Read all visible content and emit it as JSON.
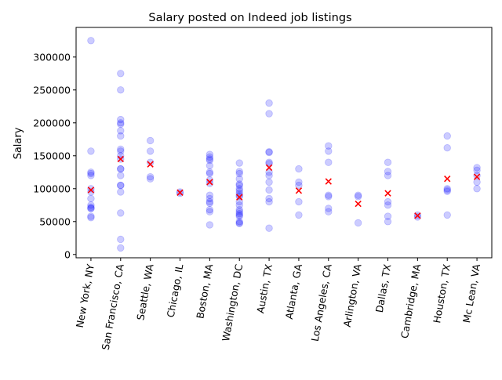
{
  "chart_data": {
    "type": "scatter",
    "title": "Salary posted on Indeed job listings",
    "xlabel": "",
    "ylabel": "Salary",
    "ylim": [
      -5000,
      345000
    ],
    "yticks": [
      0,
      50000,
      100000,
      150000,
      200000,
      250000,
      300000
    ],
    "ytick_labels": [
      "0",
      "50000",
      "100000",
      "150000",
      "200000",
      "250000",
      "300000"
    ],
    "grid": false,
    "categories": [
      "New York, NY",
      "San Francisco, CA",
      "Seattle, WA",
      "Chicago, IL",
      "Boston, MA",
      "Washington, DC",
      "Austin, TX",
      "Atlanta, GA",
      "Los Angeles, CA",
      "Arlington, VA",
      "Dallas, TX",
      "Cambridge, MA",
      "Houston, TX",
      "Mc Lean, VA"
    ],
    "series": [
      {
        "marker": "circle",
        "color": "#0000ff",
        "opacity": 0.2,
        "points": [
          [
            325000,
            157000,
            125000,
            123000,
            120000,
            100000,
            95000,
            85000,
            75000,
            72000,
            70000,
            70000,
            58000,
            56000
          ],
          [
            275000,
            250000,
            205000,
            200000,
            198000,
            188000,
            180000,
            160000,
            157000,
            150000,
            145000,
            130000,
            130000,
            120000,
            105000,
            105000,
            95000,
            63000,
            23000,
            10000
          ],
          [
            173000,
            157000,
            140000,
            118000,
            115000
          ],
          [
            95000,
            93000
          ],
          [
            152000,
            148000,
            145000,
            143000,
            135000,
            125000,
            123000,
            113000,
            108000,
            90000,
            85000,
            80000,
            78000,
            68000,
            65000,
            45000
          ],
          [
            139000,
            126000,
            123000,
            115000,
            107000,
            105000,
            100000,
            97000,
            93000,
            90000,
            88000,
            80000,
            75000,
            68000,
            65000,
            62000,
            60000,
            58000,
            50000,
            48000,
            47000
          ],
          [
            230000,
            214000,
            156000,
            155000,
            140000,
            138000,
            125000,
            120000,
            110000,
            98000,
            85000,
            80000,
            40000
          ],
          [
            130000,
            110000,
            105000,
            80000,
            60000
          ],
          [
            165000,
            157000,
            140000,
            90000,
            88000,
            70000,
            65000
          ],
          [
            90000,
            88000,
            48000
          ],
          [
            140000,
            126000,
            120000,
            80000,
            75000,
            58000,
            50000
          ],
          [
            60000,
            57000
          ],
          [
            180000,
            162000,
            100000,
            98000,
            96000,
            60000
          ],
          [
            132000,
            128000,
            120000,
            110000,
            100000
          ]
        ]
      },
      {
        "marker": "x",
        "color": "#ff0000",
        "values": [
          98000,
          145000,
          137000,
          94000,
          110000,
          87000,
          132000,
          97000,
          111000,
          77000,
          93000,
          59000,
          115000,
          118000
        ]
      }
    ]
  }
}
